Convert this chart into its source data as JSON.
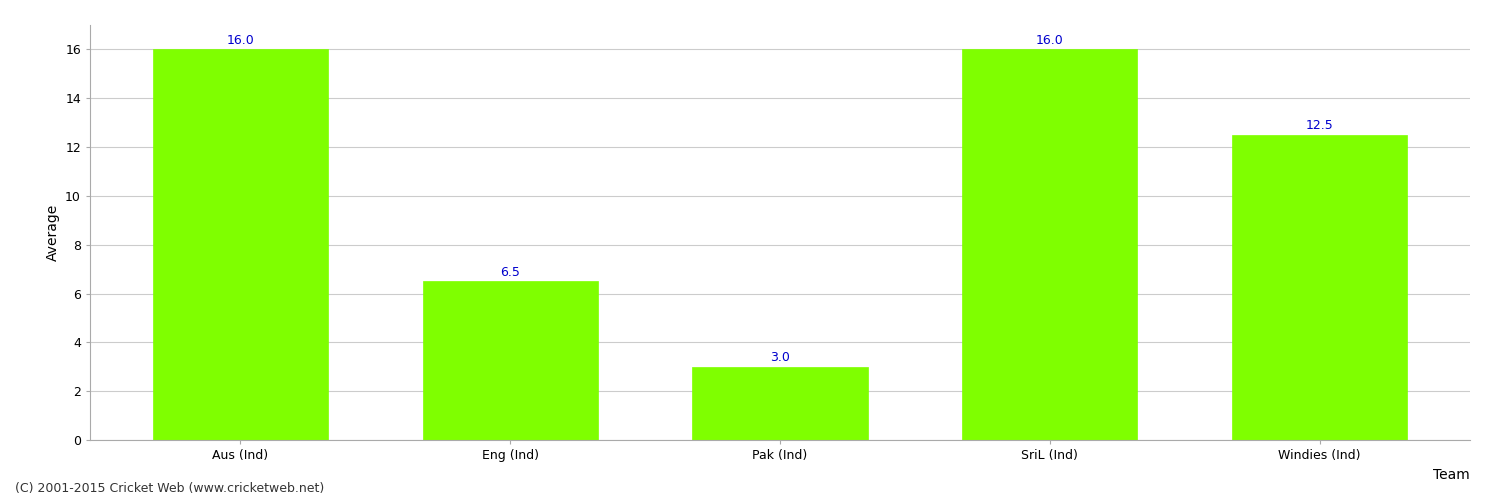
{
  "categories": [
    "Aus (Ind)",
    "Eng (Ind)",
    "Pak (Ind)",
    "SriL (Ind)",
    "Windies (Ind)"
  ],
  "values": [
    16.0,
    6.5,
    3.0,
    16.0,
    12.5
  ],
  "bar_color": "#7fff00",
  "bar_edge_color": "#7fff00",
  "label_color": "#0000cd",
  "xlabel": "Team",
  "ylabel": "Average",
  "ylim": [
    0,
    17.0
  ],
  "yticks": [
    0,
    2,
    4,
    6,
    8,
    10,
    12,
    14,
    16
  ],
  "grid_color": "#cccccc",
  "background_color": "#ffffff",
  "label_fontsize": 9,
  "axis_label_fontsize": 10,
  "tick_fontsize": 9,
  "footer_text": "(C) 2001-2015 Cricket Web (www.cricketweb.net)",
  "footer_fontsize": 9,
  "footer_color": "#333333"
}
